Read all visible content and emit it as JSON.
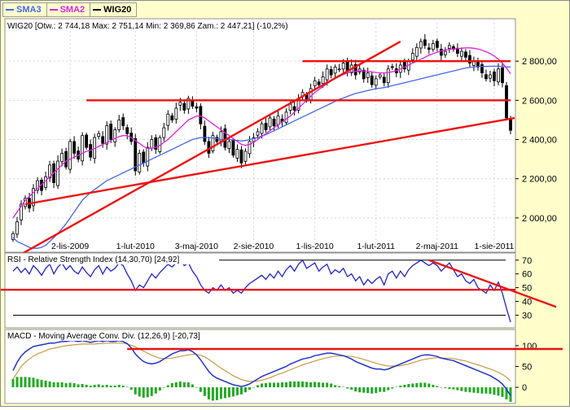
{
  "legend": {
    "items": [
      {
        "label": "SMA3",
        "color": "#4466ee"
      },
      {
        "label": "SMA2",
        "color": "#e020e0"
      },
      {
        "label": "WIG20",
        "color": "#000000"
      }
    ]
  },
  "colors": {
    "background": "#ffffcc",
    "sma_long": "#4466ee",
    "sma_short": "#e020e0",
    "trend": "#ee1111",
    "rsi": "#2222cc",
    "macd": "#2233cc",
    "signal": "#cc9944",
    "hist": "#22aa22"
  },
  "chart_data": [
    {
      "type": "line",
      "title": "WIG20 [Otw.: 2 744,18  Max: 2 751,14  Min: 2 369,86  Zam.: 2 447,21] (-10,2%)",
      "ylim": [
        1850,
        3000
      ],
      "yticks": [
        2000,
        2200,
        2400,
        2600,
        2800
      ],
      "ytick_labels": [
        "2 000,00",
        "2 200,00",
        "2 400,00",
        "2 600,00",
        "2 800,00"
      ],
      "xticks": [
        {
          "label": "2-lis-2009",
          "i": 14
        },
        {
          "label": "1-lut-2010",
          "i": 30
        },
        {
          "label": "3-maj-2010",
          "i": 45
        },
        {
          "label": "2-sie-2010",
          "i": 59
        },
        {
          "label": "1-lis-2010",
          "i": 74
        },
        {
          "label": "1-lut-2011",
          "i": 89
        },
        {
          "label": "2-maj-2011",
          "i": 104
        },
        {
          "label": "1-sie-2011",
          "i": 118
        }
      ],
      "n_points": 123,
      "close": [
        1920,
        1980,
        2070,
        2100,
        2050,
        2150,
        2190,
        2140,
        2210,
        2270,
        2180,
        2290,
        2330,
        2260,
        2390,
        2330,
        2300,
        2420,
        2360,
        2310,
        2410,
        2430,
        2380,
        2470,
        2400,
        2450,
        2500,
        2470,
        2430,
        2390,
        2240,
        2330,
        2280,
        2360,
        2400,
        2350,
        2410,
        2460,
        2530,
        2500,
        2560,
        2590,
        2550,
        2610,
        2570,
        2560,
        2480,
        2390,
        2330,
        2420,
        2390,
        2440,
        2360,
        2390,
        2320,
        2350,
        2280,
        2340,
        2390,
        2410,
        2440,
        2480,
        2450,
        2510,
        2470,
        2520,
        2490,
        2540,
        2580,
        2550,
        2610,
        2640,
        2600,
        2660,
        2700,
        2680,
        2720,
        2760,
        2730,
        2770,
        2760,
        2790,
        2750,
        2780,
        2730,
        2760,
        2710,
        2740,
        2680,
        2710,
        2730,
        2690,
        2760,
        2770,
        2740,
        2780,
        2760,
        2800,
        2840,
        2870,
        2900,
        2880,
        2860,
        2890,
        2870,
        2830,
        2850,
        2880,
        2860,
        2840,
        2850,
        2820,
        2790,
        2800,
        2770,
        2740,
        2710,
        2730,
        2700,
        2760,
        2690,
        2510,
        2447
      ],
      "sma_long": [
        1900,
        1880,
        1870,
        1860,
        1850,
        1845,
        1845,
        1850,
        1860,
        1880,
        1900,
        1920,
        1945,
        1970,
        2000,
        2030,
        2060,
        2090,
        2110,
        2130,
        2145,
        2160,
        2175,
        2190,
        2200,
        2210,
        2220,
        2230,
        2240,
        2250,
        2260,
        2270,
        2280,
        2290,
        2300,
        2310,
        2320,
        2330,
        2340,
        2350,
        2360,
        2370,
        2380,
        2390,
        2400,
        2405,
        2410,
        2410,
        2410,
        2408,
        2405,
        2400,
        2400,
        2400,
        2398,
        2395,
        2392,
        2395,
        2400,
        2405,
        2410,
        2418,
        2425,
        2435,
        2445,
        2455,
        2465,
        2475,
        2485,
        2495,
        2505,
        2515,
        2525,
        2535,
        2545,
        2555,
        2565,
        2575,
        2585,
        2595,
        2605,
        2612,
        2620,
        2628,
        2635,
        2640,
        2645,
        2650,
        2655,
        2660,
        2662,
        2665,
        2670,
        2675,
        2680,
        2685,
        2690,
        2695,
        2700,
        2705,
        2710,
        2715,
        2720,
        2725,
        2730,
        2735,
        2740,
        2745,
        2750,
        2755,
        2760,
        2765,
        2768,
        2770,
        2772,
        2773,
        2773,
        2774,
        2774,
        2774,
        2773,
        2771,
        2770
      ],
      "sma_short": [
        2000,
        2030,
        2060,
        2090,
        2110,
        2130,
        2150,
        2170,
        2190,
        2210,
        2230,
        2250,
        2270,
        2290,
        2300,
        2310,
        2320,
        2330,
        2340,
        2345,
        2355,
        2365,
        2375,
        2385,
        2395,
        2405,
        2415,
        2420,
        2420,
        2410,
        2395,
        2380,
        2365,
        2355,
        2355,
        2360,
        2370,
        2385,
        2400,
        2420,
        2440,
        2460,
        2480,
        2500,
        2510,
        2520,
        2520,
        2510,
        2495,
        2480,
        2465,
        2450,
        2435,
        2420,
        2405,
        2390,
        2375,
        2370,
        2375,
        2385,
        2400,
        2415,
        2430,
        2445,
        2460,
        2475,
        2490,
        2505,
        2520,
        2540,
        2560,
        2580,
        2600,
        2620,
        2640,
        2655,
        2670,
        2685,
        2700,
        2712,
        2722,
        2732,
        2740,
        2745,
        2748,
        2750,
        2750,
        2748,
        2745,
        2742,
        2740,
        2740,
        2742,
        2746,
        2752,
        2760,
        2770,
        2780,
        2790,
        2800,
        2810,
        2820,
        2830,
        2838,
        2845,
        2852,
        2857,
        2860,
        2862,
        2864,
        2866,
        2868,
        2868,
        2866,
        2862,
        2856,
        2848,
        2838,
        2826,
        2810,
        2790,
        2765,
        2735
      ]
    },
    {
      "type": "line",
      "title": "RSI - Relative Strength Index (14,30,70) [24,92]",
      "ylim": [
        22,
        74
      ],
      "yticks": [
        30,
        40,
        50,
        60,
        70
      ],
      "ytick_labels": [
        "30",
        "40",
        "50",
        "60",
        "70"
      ],
      "levels": [
        30,
        70
      ],
      "rsi": [
        62,
        65,
        61,
        64,
        60,
        66,
        63,
        59,
        64,
        67,
        60,
        65,
        68,
        63,
        66,
        62,
        60,
        65,
        61,
        58,
        63,
        66,
        60,
        65,
        62,
        64,
        68,
        66,
        60,
        55,
        48,
        52,
        50,
        55,
        60,
        57,
        61,
        64,
        67,
        65,
        68,
        70,
        66,
        68,
        62,
        58,
        52,
        48,
        46,
        50,
        48,
        52,
        48,
        50,
        46,
        48,
        46,
        50,
        53,
        55,
        57,
        59,
        56,
        60,
        57,
        62,
        58,
        63,
        66,
        62,
        67,
        70,
        64,
        66,
        68,
        62,
        65,
        67,
        60,
        63,
        61,
        64,
        58,
        60,
        55,
        58,
        52,
        56,
        53,
        56,
        58,
        52,
        60,
        62,
        57,
        62,
        58,
        63,
        66,
        68,
        70,
        68,
        66,
        68,
        66,
        62,
        65,
        68,
        63,
        58,
        60,
        55,
        53,
        56,
        50,
        48,
        46,
        52,
        48,
        54,
        46,
        35,
        25
      ]
    },
    {
      "type": "line",
      "title": "MACD - Moving Average Conv. Div. (12,26,9) [-20,73]",
      "ylim": [
        -35,
        135
      ],
      "yticks": [
        0,
        50,
        100
      ],
      "ytick_labels": [
        "0",
        "50",
        "100"
      ],
      "macd": [
        40,
        60,
        75,
        85,
        92,
        98,
        100,
        102,
        104,
        106,
        106,
        108,
        110,
        110,
        112,
        112,
        110,
        112,
        110,
        108,
        110,
        112,
        110,
        112,
        110,
        110,
        112,
        110,
        105,
        95,
        80,
        70,
        62,
        58,
        56,
        58,
        62,
        68,
        74,
        80,
        84,
        88,
        88,
        90,
        86,
        78,
        66,
        52,
        38,
        28,
        22,
        18,
        14,
        10,
        6,
        4,
        2,
        4,
        8,
        14,
        20,
        26,
        30,
        34,
        38,
        42,
        46,
        50,
        56,
        60,
        64,
        68,
        70,
        72,
        76,
        78,
        80,
        82,
        82,
        80,
        78,
        76,
        72,
        68,
        62,
        58,
        54,
        50,
        46,
        44,
        44,
        42,
        44,
        48,
        52,
        56,
        60,
        64,
        68,
        72,
        76,
        78,
        78,
        76,
        74,
        70,
        68,
        66,
        64,
        60,
        56,
        52,
        48,
        44,
        40,
        36,
        32,
        28,
        22,
        16,
        8,
        -5,
        -20
      ],
      "signal": [
        20,
        35,
        50,
        60,
        68,
        75,
        80,
        84,
        88,
        92,
        94,
        96,
        98,
        100,
        101,
        102,
        103,
        104,
        104,
        104,
        104,
        105,
        105,
        106,
        106,
        106,
        106,
        106,
        104,
        101,
        97,
        92,
        87,
        82,
        77,
        73,
        70,
        69,
        69,
        70,
        72,
        74,
        76,
        78,
        79,
        79,
        77,
        73,
        67,
        60,
        53,
        46,
        40,
        34,
        28,
        23,
        19,
        16,
        14,
        14,
        15,
        17,
        20,
        23,
        27,
        31,
        34,
        38,
        42,
        46,
        50,
        54,
        57,
        60,
        63,
        66,
        69,
        71,
        73,
        75,
        75,
        75,
        75,
        74,
        72,
        70,
        67,
        64,
        61,
        58,
        55,
        53,
        51,
        51,
        51,
        52,
        54,
        56,
        59,
        62,
        65,
        67,
        69,
        70,
        71,
        71,
        70,
        70,
        69,
        67,
        65,
        63,
        60,
        57,
        54,
        51,
        47,
        44,
        40,
        36,
        31,
        24,
        15
      ]
    }
  ]
}
